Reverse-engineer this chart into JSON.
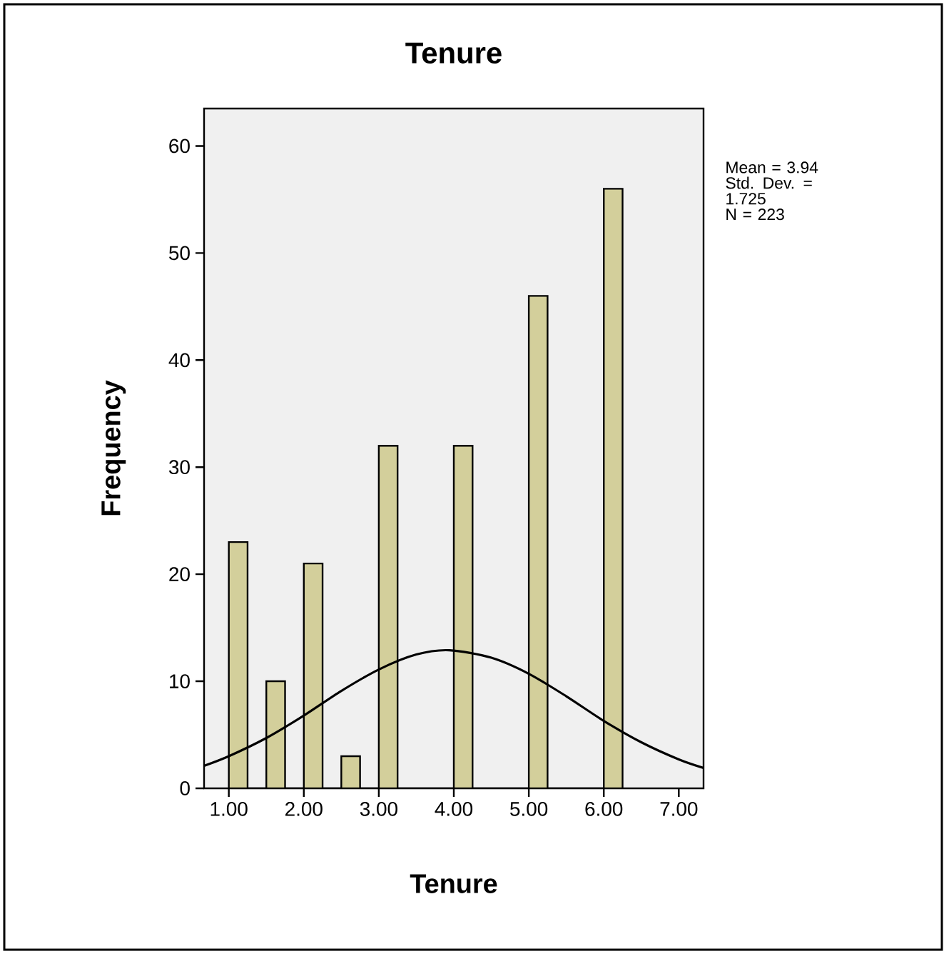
{
  "chart_data": {
    "type": "histogram",
    "title": "Tenure",
    "xlabel": "Tenure",
    "ylabel": "Frequency",
    "bins": [
      1.0,
      1.25,
      1.5,
      1.75,
      2.0,
      2.25,
      2.5,
      2.75,
      3.0,
      3.25,
      3.5,
      3.75,
      4.0,
      4.25,
      4.5,
      4.75,
      5.0,
      5.25,
      5.5,
      5.75,
      6.0,
      6.25
    ],
    "values": [
      23,
      0,
      10,
      0,
      21,
      0,
      3,
      0,
      32,
      0,
      0,
      0,
      32,
      0,
      0,
      0,
      46,
      0,
      0,
      0,
      56
    ],
    "color": "#d3cf9b",
    "series": [
      {
        "type": "line",
        "color": "#000000",
        "x": [
          0.67,
          1.0,
          1.5,
          2.0,
          2.5,
          3.0,
          3.5,
          3.94,
          4.5,
          5.0,
          5.5,
          6.0,
          6.5,
          7.0,
          7.33
        ],
        "values": [
          2.1,
          3.0,
          4.7,
          6.8,
          9.1,
          11.1,
          12.5,
          12.9,
          12.2,
          10.7,
          8.6,
          6.3,
          4.3,
          2.7,
          1.9
        ]
      }
    ],
    "xlim": [
      0.67,
      7.33
    ],
    "ylim": [
      0,
      63.5
    ],
    "xticks": [
      {
        "value": 1,
        "label": "1.00"
      },
      {
        "value": 2,
        "label": "2.00"
      },
      {
        "value": 3,
        "label": "3.00"
      },
      {
        "value": 4,
        "label": "4.00"
      },
      {
        "value": 5,
        "label": "5.00"
      },
      {
        "value": 6,
        "label": "6.00"
      },
      {
        "value": 7,
        "label": "7.00"
      }
    ],
    "yticks": [
      0,
      10,
      20,
      30,
      40,
      50,
      60
    ],
    "annotations": [
      "Mean = 3.94",
      "Std. Dev. = 1.725",
      "N = 223"
    ],
    "grid": false
  }
}
